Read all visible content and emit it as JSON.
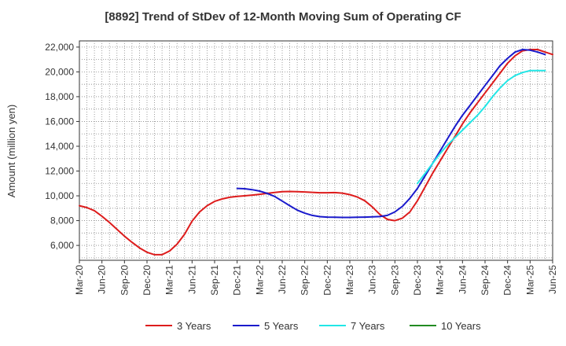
{
  "chart_data": {
    "type": "line",
    "title": "[8892]  Trend of StDev of 12-Month Moving Sum of Operating CF",
    "xlabel": "",
    "ylabel": "Amount (million yen)",
    "ylim": [
      4800,
      22500
    ],
    "y_ticks": [
      6000,
      8000,
      10000,
      12000,
      14000,
      16000,
      18000,
      20000,
      22000
    ],
    "y_tick_labels": [
      "6,000",
      "8,000",
      "10,000",
      "12,000",
      "14,000",
      "16,000",
      "18,000",
      "20,000",
      "22,000"
    ],
    "x_ticks": [
      "Mar-20",
      "Jun-20",
      "Sep-20",
      "Dec-20",
      "Mar-21",
      "Jun-21",
      "Sep-21",
      "Dec-21",
      "Mar-22",
      "Jun-22",
      "Sep-22",
      "Dec-22",
      "Mar-23",
      "Jun-23",
      "Sep-23",
      "Dec-23",
      "Mar-24",
      "Jun-24",
      "Sep-24",
      "Dec-24",
      "Mar-25",
      "Jun-25"
    ],
    "grid": true,
    "legend_position": "bottom",
    "series": [
      {
        "name": "3 Years",
        "color": "#dd1c1c",
        "start_month_index": 0,
        "values": [
          9200,
          9050,
          8800,
          8350,
          7850,
          7300,
          6750,
          6250,
          5800,
          5450,
          5250,
          5250,
          5550,
          6100,
          6900,
          7950,
          8700,
          9200,
          9550,
          9750,
          9880,
          9950,
          10000,
          10060,
          10120,
          10200,
          10270,
          10330,
          10350,
          10340,
          10310,
          10280,
          10250,
          10250,
          10260,
          10220,
          10100,
          9900,
          9600,
          9100,
          8500,
          8100,
          8000,
          8200,
          8700,
          9600,
          10700,
          11800,
          12800,
          13800,
          14800,
          15800,
          16700,
          17500,
          18300,
          19100,
          19900,
          20700,
          21300,
          21700,
          21800,
          21800,
          21600,
          21400
        ]
      },
      {
        "name": "5 Years",
        "color": "#1a1acc",
        "start_month_index": 21,
        "values": [
          10600,
          10570,
          10500,
          10380,
          10200,
          9950,
          9580,
          9200,
          8850,
          8600,
          8420,
          8320,
          8280,
          8270,
          8260,
          8260,
          8270,
          8280,
          8300,
          8330,
          8420,
          8700,
          9150,
          9800,
          10600,
          11600,
          12600,
          13600,
          14600,
          15600,
          16500,
          17300,
          18100,
          18900,
          19700,
          20500,
          21100,
          21600,
          21800,
          21750,
          21600,
          21400
        ]
      },
      {
        "name": "7 Years",
        "color": "#22e6e6",
        "start_month_index": 45,
        "values": [
          11000,
          11800,
          12600,
          13400,
          14100,
          14700,
          15300,
          15900,
          16500,
          17200,
          18000,
          18700,
          19300,
          19700,
          19950,
          20100,
          20100,
          20100
        ]
      },
      {
        "name": "10 Years",
        "color": "#228b22",
        "start_month_index": 0,
        "values": []
      }
    ]
  }
}
